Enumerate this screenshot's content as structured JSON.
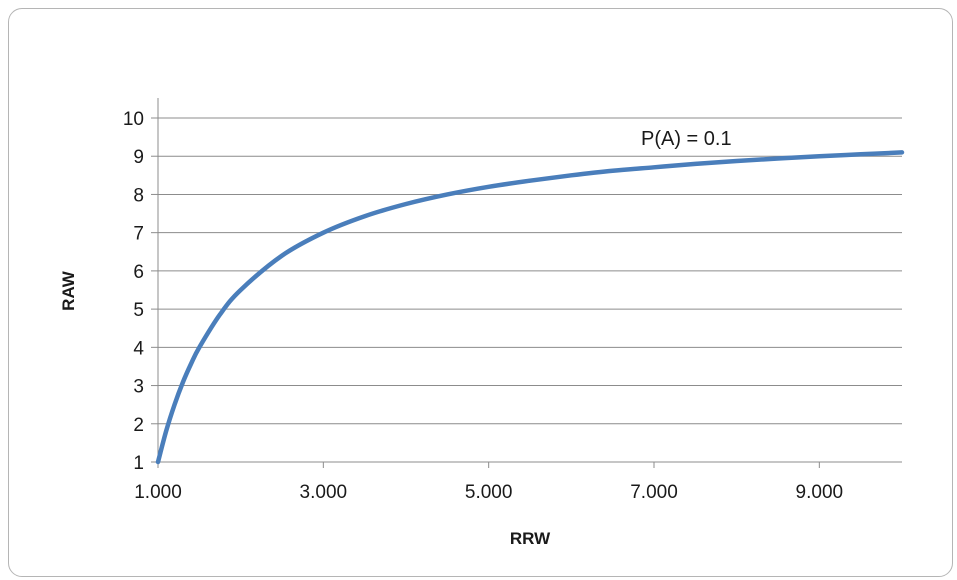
{
  "chart_data": {
    "type": "line",
    "title": "",
    "xlabel": "RRW",
    "ylabel": "RAW",
    "xlim": [
      1,
      10
    ],
    "ylim": [
      1,
      10
    ],
    "x_ticks": [
      "1.000",
      "3.000",
      "5.000",
      "7.000",
      "9.000"
    ],
    "y_ticks": [
      "1",
      "2",
      "3",
      "4",
      "5",
      "6",
      "7",
      "8",
      "9",
      "10"
    ],
    "grid": "horizontal",
    "legend": "none",
    "annotation": "P(A) = 0.1",
    "series": [
      {
        "color": "#4a7ebb",
        "x": [
          1.0,
          1.1,
          1.2,
          1.3,
          1.4,
          1.5,
          1.75,
          2.0,
          2.5,
          3.0,
          3.5,
          4.0,
          4.5,
          5.0,
          5.5,
          6.0,
          6.5,
          7.0,
          7.5,
          8.0,
          8.5,
          9.0,
          9.5,
          10.0
        ],
        "y": [
          1.0,
          1.82,
          2.5,
          3.08,
          3.57,
          4.0,
          4.86,
          5.5,
          6.4,
          7.0,
          7.43,
          7.75,
          8.0,
          8.2,
          8.36,
          8.5,
          8.62,
          8.71,
          8.8,
          8.875,
          8.94,
          9.0,
          9.05,
          9.1
        ]
      }
    ]
  }
}
